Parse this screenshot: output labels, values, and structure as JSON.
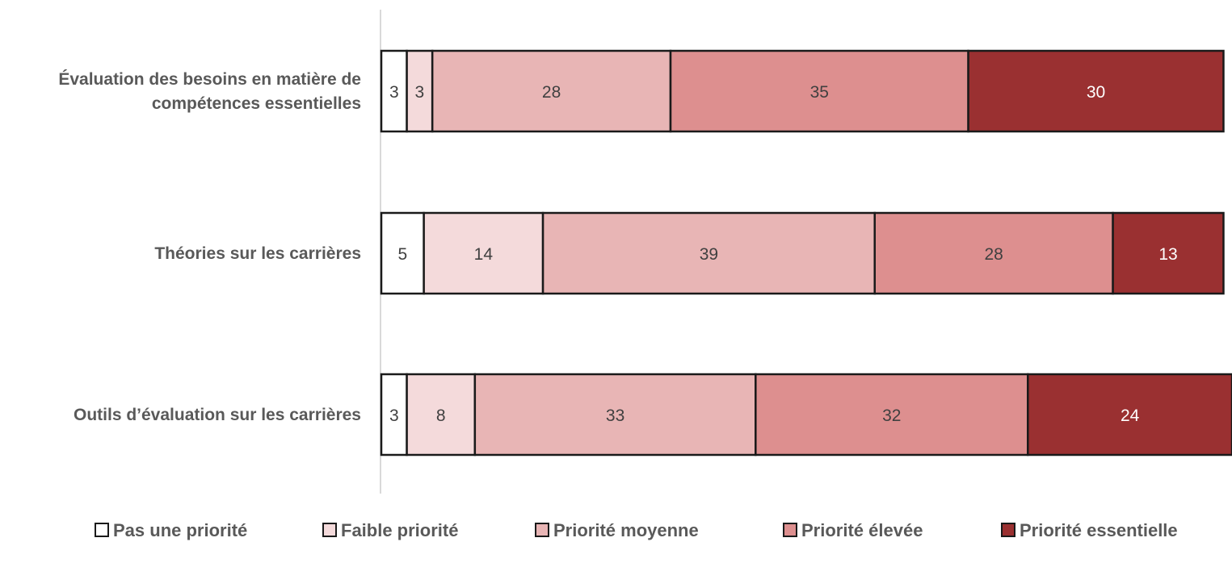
{
  "chart_data": {
    "type": "bar",
    "orientation": "horizontal",
    "stacked": true,
    "categories": [
      "Évaluation des besoins en matière de compétences essentielles",
      "Théories sur les carrières",
      "Outils d’évaluation sur les carrières"
    ],
    "category_lines": [
      [
        "Évaluation des besoins en matière de",
        "compétences essentielles"
      ],
      [
        "Théories sur les carrières"
      ],
      [
        "Outils d’évaluation sur les carrières"
      ]
    ],
    "series": [
      {
        "name": "Pas une priorité",
        "values": [
          3,
          5,
          3
        ],
        "color": "#ffffff",
        "label_color": "#404040"
      },
      {
        "name": "Faible priorité",
        "values": [
          3,
          14,
          8
        ],
        "color": "#f4dadb",
        "label_color": "#404040"
      },
      {
        "name": "Priorité moyenne",
        "values": [
          28,
          39,
          33
        ],
        "color": "#e8b5b5",
        "label_color": "#404040"
      },
      {
        "name": "Priorité élevée",
        "values": [
          35,
          28,
          32
        ],
        "color": "#dd8f8f",
        "label_color": "#404040"
      },
      {
        "name": "Priorité essentielle",
        "values": [
          30,
          13,
          24
        ],
        "color": "#9a3031",
        "label_color": "#ffffff"
      }
    ],
    "xlim": [
      0,
      100
    ],
    "legend_position": "bottom",
    "grid": false
  }
}
